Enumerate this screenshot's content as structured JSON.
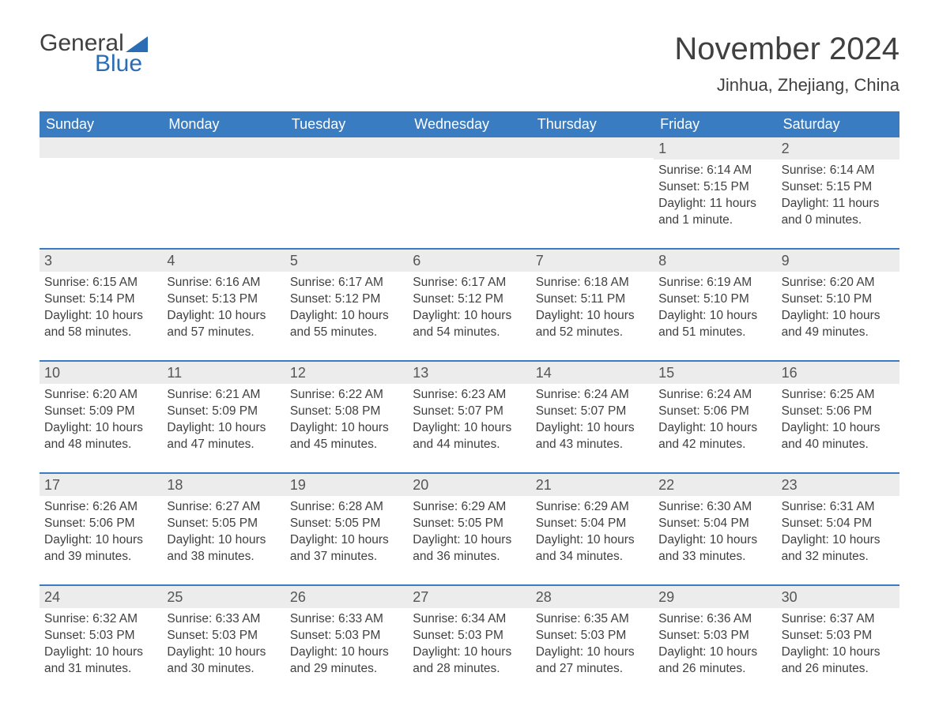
{
  "logo": {
    "part1": "General",
    "part2": "Blue"
  },
  "title": "November 2024",
  "location": "Jinhua, Zhejiang, China",
  "colors": {
    "header_bg": "#3a7cc2",
    "header_text": "#ffffff",
    "daynum_bg": "#ececec",
    "text": "#404040",
    "accent": "#2a6db5",
    "rule": "#3a7cc2"
  },
  "typography": {
    "title_fontsize": 40,
    "location_fontsize": 22,
    "dayheader_fontsize": 18,
    "cell_fontsize": 15.5
  },
  "layout": {
    "columns": 7,
    "rows": 5,
    "first_day_column_index": 5
  },
  "day_headers": [
    "Sunday",
    "Monday",
    "Tuesday",
    "Wednesday",
    "Thursday",
    "Friday",
    "Saturday"
  ],
  "weeks": [
    [
      null,
      null,
      null,
      null,
      null,
      {
        "day": "1",
        "sunrise": "Sunrise: 6:14 AM",
        "sunset": "Sunset: 5:15 PM",
        "daylight": "Daylight: 11 hours and 1 minute."
      },
      {
        "day": "2",
        "sunrise": "Sunrise: 6:14 AM",
        "sunset": "Sunset: 5:15 PM",
        "daylight": "Daylight: 11 hours and 0 minutes."
      }
    ],
    [
      {
        "day": "3",
        "sunrise": "Sunrise: 6:15 AM",
        "sunset": "Sunset: 5:14 PM",
        "daylight": "Daylight: 10 hours and 58 minutes."
      },
      {
        "day": "4",
        "sunrise": "Sunrise: 6:16 AM",
        "sunset": "Sunset: 5:13 PM",
        "daylight": "Daylight: 10 hours and 57 minutes."
      },
      {
        "day": "5",
        "sunrise": "Sunrise: 6:17 AM",
        "sunset": "Sunset: 5:12 PM",
        "daylight": "Daylight: 10 hours and 55 minutes."
      },
      {
        "day": "6",
        "sunrise": "Sunrise: 6:17 AM",
        "sunset": "Sunset: 5:12 PM",
        "daylight": "Daylight: 10 hours and 54 minutes."
      },
      {
        "day": "7",
        "sunrise": "Sunrise: 6:18 AM",
        "sunset": "Sunset: 5:11 PM",
        "daylight": "Daylight: 10 hours and 52 minutes."
      },
      {
        "day": "8",
        "sunrise": "Sunrise: 6:19 AM",
        "sunset": "Sunset: 5:10 PM",
        "daylight": "Daylight: 10 hours and 51 minutes."
      },
      {
        "day": "9",
        "sunrise": "Sunrise: 6:20 AM",
        "sunset": "Sunset: 5:10 PM",
        "daylight": "Daylight: 10 hours and 49 minutes."
      }
    ],
    [
      {
        "day": "10",
        "sunrise": "Sunrise: 6:20 AM",
        "sunset": "Sunset: 5:09 PM",
        "daylight": "Daylight: 10 hours and 48 minutes."
      },
      {
        "day": "11",
        "sunrise": "Sunrise: 6:21 AM",
        "sunset": "Sunset: 5:09 PM",
        "daylight": "Daylight: 10 hours and 47 minutes."
      },
      {
        "day": "12",
        "sunrise": "Sunrise: 6:22 AM",
        "sunset": "Sunset: 5:08 PM",
        "daylight": "Daylight: 10 hours and 45 minutes."
      },
      {
        "day": "13",
        "sunrise": "Sunrise: 6:23 AM",
        "sunset": "Sunset: 5:07 PM",
        "daylight": "Daylight: 10 hours and 44 minutes."
      },
      {
        "day": "14",
        "sunrise": "Sunrise: 6:24 AM",
        "sunset": "Sunset: 5:07 PM",
        "daylight": "Daylight: 10 hours and 43 minutes."
      },
      {
        "day": "15",
        "sunrise": "Sunrise: 6:24 AM",
        "sunset": "Sunset: 5:06 PM",
        "daylight": "Daylight: 10 hours and 42 minutes."
      },
      {
        "day": "16",
        "sunrise": "Sunrise: 6:25 AM",
        "sunset": "Sunset: 5:06 PM",
        "daylight": "Daylight: 10 hours and 40 minutes."
      }
    ],
    [
      {
        "day": "17",
        "sunrise": "Sunrise: 6:26 AM",
        "sunset": "Sunset: 5:06 PM",
        "daylight": "Daylight: 10 hours and 39 minutes."
      },
      {
        "day": "18",
        "sunrise": "Sunrise: 6:27 AM",
        "sunset": "Sunset: 5:05 PM",
        "daylight": "Daylight: 10 hours and 38 minutes."
      },
      {
        "day": "19",
        "sunrise": "Sunrise: 6:28 AM",
        "sunset": "Sunset: 5:05 PM",
        "daylight": "Daylight: 10 hours and 37 minutes."
      },
      {
        "day": "20",
        "sunrise": "Sunrise: 6:29 AM",
        "sunset": "Sunset: 5:05 PM",
        "daylight": "Daylight: 10 hours and 36 minutes."
      },
      {
        "day": "21",
        "sunrise": "Sunrise: 6:29 AM",
        "sunset": "Sunset: 5:04 PM",
        "daylight": "Daylight: 10 hours and 34 minutes."
      },
      {
        "day": "22",
        "sunrise": "Sunrise: 6:30 AM",
        "sunset": "Sunset: 5:04 PM",
        "daylight": "Daylight: 10 hours and 33 minutes."
      },
      {
        "day": "23",
        "sunrise": "Sunrise: 6:31 AM",
        "sunset": "Sunset: 5:04 PM",
        "daylight": "Daylight: 10 hours and 32 minutes."
      }
    ],
    [
      {
        "day": "24",
        "sunrise": "Sunrise: 6:32 AM",
        "sunset": "Sunset: 5:03 PM",
        "daylight": "Daylight: 10 hours and 31 minutes."
      },
      {
        "day": "25",
        "sunrise": "Sunrise: 6:33 AM",
        "sunset": "Sunset: 5:03 PM",
        "daylight": "Daylight: 10 hours and 30 minutes."
      },
      {
        "day": "26",
        "sunrise": "Sunrise: 6:33 AM",
        "sunset": "Sunset: 5:03 PM",
        "daylight": "Daylight: 10 hours and 29 minutes."
      },
      {
        "day": "27",
        "sunrise": "Sunrise: 6:34 AM",
        "sunset": "Sunset: 5:03 PM",
        "daylight": "Daylight: 10 hours and 28 minutes."
      },
      {
        "day": "28",
        "sunrise": "Sunrise: 6:35 AM",
        "sunset": "Sunset: 5:03 PM",
        "daylight": "Daylight: 10 hours and 27 minutes."
      },
      {
        "day": "29",
        "sunrise": "Sunrise: 6:36 AM",
        "sunset": "Sunset: 5:03 PM",
        "daylight": "Daylight: 10 hours and 26 minutes."
      },
      {
        "day": "30",
        "sunrise": "Sunrise: 6:37 AM",
        "sunset": "Sunset: 5:03 PM",
        "daylight": "Daylight: 10 hours and 26 minutes."
      }
    ]
  ]
}
